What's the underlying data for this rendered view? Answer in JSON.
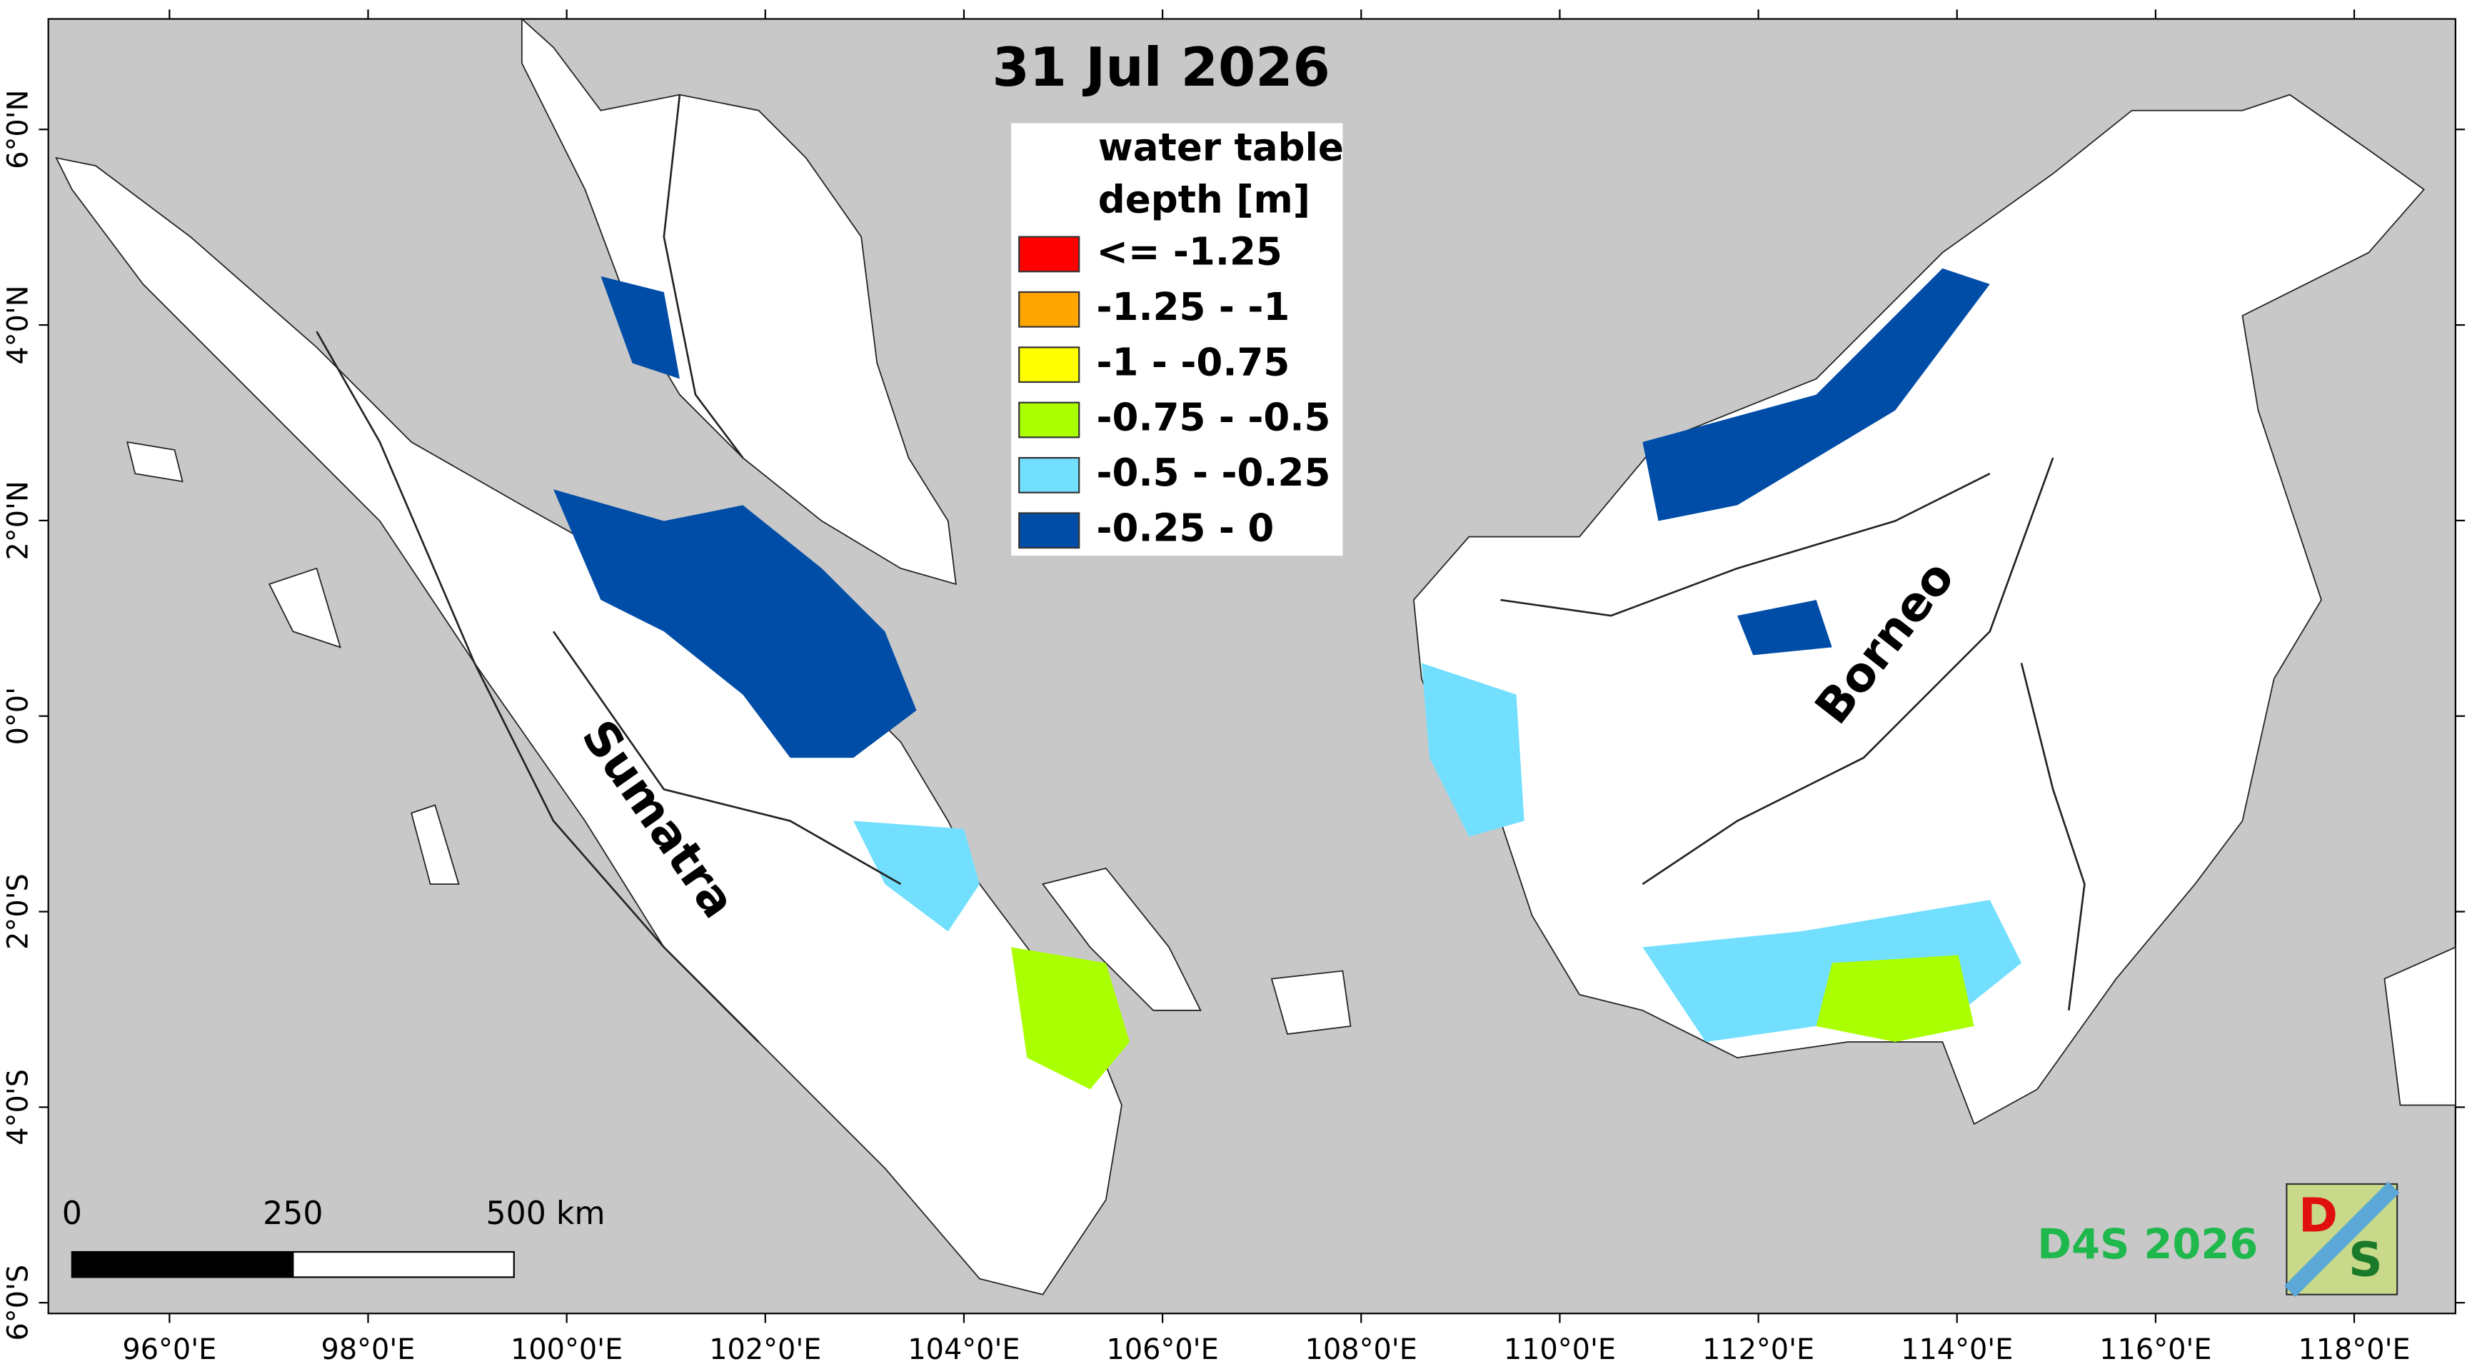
{
  "map": {
    "title": "31 Jul 2026",
    "legend": {
      "title_lines": [
        "water table",
        "depth [m]"
      ],
      "items": [
        {
          "label": "<= -1.25",
          "color": "#ff0000"
        },
        {
          "label": "-1.25 - -1",
          "color": "#ffa500"
        },
        {
          "label": "-1 - -0.75",
          "color": "#ffff00"
        },
        {
          "label": "-0.75 - -0.5",
          "color": "#aaff00"
        },
        {
          "label": "-0.5 - -0.25",
          "color": "#73dfff"
        },
        {
          "label": "-0.25 - 0",
          "color": "#004da8"
        }
      ]
    },
    "scale_bar": [
      "0",
      "250",
      "500 km"
    ],
    "regions": [
      "Sumatra",
      "Borneo"
    ],
    "credit": "D4S 2026",
    "logo": [
      "D",
      "S"
    ],
    "xlim": [
      94.78,
      119.02
    ],
    "ylim": [
      -6.11,
      7.13
    ],
    "xticks": [
      {
        "value": 96,
        "label": "96°0'E"
      },
      {
        "value": 98,
        "label": "98°0'E"
      },
      {
        "value": 100,
        "label": "100°0'E"
      },
      {
        "value": 102,
        "label": "102°0'E"
      },
      {
        "value": 104,
        "label": "104°0'E"
      },
      {
        "value": 106,
        "label": "106°0'E"
      },
      {
        "value": 108,
        "label": "108°0'E"
      },
      {
        "value": 110,
        "label": "110°0'E"
      },
      {
        "value": 112,
        "label": "112°0'E"
      },
      {
        "value": 114,
        "label": "114°0'E"
      },
      {
        "value": 116,
        "label": "116°0'E"
      },
      {
        "value": 118,
        "label": "118°0'E"
      }
    ],
    "yticks": [
      {
        "value": 6,
        "label": "6°0'N"
      },
      {
        "value": 4,
        "label": "4°0'N"
      },
      {
        "value": 2,
        "label": "2°0'N"
      },
      {
        "value": 0,
        "label": "0°0'"
      },
      {
        "value": -2,
        "label": "2°0'S"
      },
      {
        "value": -4,
        "label": "4°0'S"
      },
      {
        "value": -6,
        "label": "6°0'S"
      }
    ]
  }
}
